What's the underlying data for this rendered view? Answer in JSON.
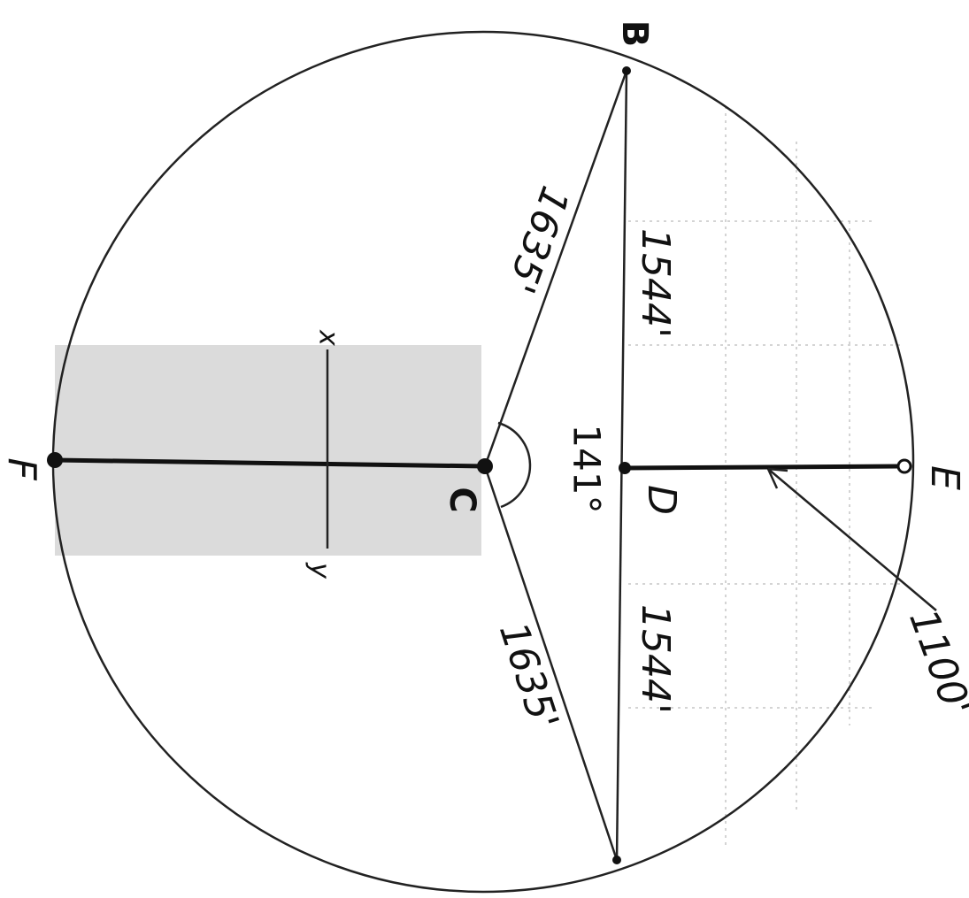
{
  "points": {
    "B": "B",
    "C": "C",
    "D": "D",
    "E": "E",
    "F": "F"
  },
  "axis": {
    "x": "x",
    "y": "y"
  },
  "measures": {
    "bc": "1635'",
    "ca": "1635'",
    "bd": "1544'",
    "da": "1544'",
    "angle": "141°",
    "de": "1100'"
  }
}
